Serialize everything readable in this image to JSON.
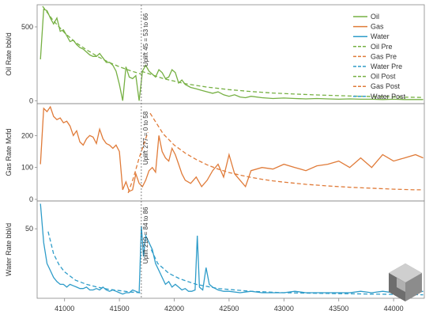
{
  "colors": {
    "oil": "#76b043",
    "gas": "#e07b39",
    "water": "#2e9cc9",
    "frame": "#888888",
    "marker_line": "#666666"
  },
  "chart_data": {
    "type": "line",
    "x_ticks": [
      41000,
      41500,
      42000,
      42500,
      43000,
      43500,
      44000
    ],
    "xlim": [
      40750,
      44280
    ],
    "marker_x": 41700,
    "legend": [
      "Oil",
      "Gas",
      "Water",
      "Oil Pre",
      "Gas Pre",
      "Water Pre",
      "Oil Post",
      "Gas Post",
      "Water Post"
    ],
    "legend_position": "top-right",
    "panels": [
      {
        "name": "oil",
        "ylabel": "Oil Rate bbl/d",
        "ylim": [
          -20,
          650
        ],
        "y_ticks": [
          0,
          500
        ],
        "uplift_label": "Uplift 45 = 53 to 66",
        "actual": {
          "name": "Oil",
          "x": [
            40780,
            40810,
            40840,
            40870,
            40900,
            40930,
            40960,
            40990,
            41020,
            41050,
            41080,
            41110,
            41140,
            41170,
            41200,
            41230,
            41260,
            41290,
            41320,
            41350,
            41380,
            41410,
            41440,
            41470,
            41500,
            41530,
            41560,
            41590,
            41620,
            41650,
            41680,
            41710,
            41740,
            41770,
            41800,
            41830,
            41860,
            41890,
            41920,
            41950,
            41980,
            42010,
            42040,
            42070,
            42100,
            42150,
            42200,
            42250,
            42300,
            42350,
            42400,
            42450,
            42500,
            42550,
            42600,
            42650,
            42700,
            42800,
            42900,
            43000,
            43100,
            43200,
            43300,
            43400,
            43500,
            43600,
            43700,
            43800,
            43900,
            44000,
            44100,
            44200,
            44270
          ],
          "y": [
            280,
            620,
            610,
            560,
            520,
            560,
            470,
            480,
            440,
            400,
            410,
            380,
            360,
            350,
            330,
            310,
            300,
            300,
            320,
            290,
            260,
            260,
            240,
            200,
            110,
            0,
            230,
            160,
            150,
            170,
            0,
            200,
            240,
            200,
            180,
            160,
            210,
            190,
            150,
            160,
            210,
            190,
            120,
            140,
            110,
            90,
            80,
            70,
            60,
            50,
            60,
            40,
            30,
            40,
            25,
            20,
            30,
            20,
            15,
            18,
            15,
            12,
            15,
            12,
            10,
            12,
            10,
            10,
            8,
            10,
            8,
            8,
            8
          ]
        },
        "pre": {
          "name": "Oil Pre",
          "x": [
            40800,
            40900,
            41000,
            41100,
            41200,
            41300,
            41400,
            41500,
            41600,
            41700
          ],
          "y": [
            640,
            540,
            460,
            395,
            345,
            300,
            262,
            230,
            203,
            180
          ]
        },
        "post": {
          "name": "Oil Post",
          "x": [
            41700,
            41900,
            42100,
            42300,
            42500,
            42700,
            42900,
            43100,
            43300,
            43500,
            43700,
            43900,
            44100,
            44270
          ],
          "y": [
            200,
            150,
            115,
            92,
            75,
            62,
            52,
            45,
            39,
            34,
            30,
            27,
            24,
            22
          ]
        }
      },
      {
        "name": "gas",
        "ylabel": "Gas Rate Mcfd",
        "ylim": [
          -5,
          300
        ],
        "y_ticks": [
          0,
          100,
          200
        ],
        "uplift_label": "Uplift 277 = 0 to 58",
        "actual": {
          "name": "Gas",
          "x": [
            40780,
            40810,
            40840,
            40870,
            40900,
            40930,
            40960,
            40990,
            41020,
            41050,
            41080,
            41110,
            41140,
            41170,
            41200,
            41230,
            41260,
            41290,
            41320,
            41350,
            41380,
            41410,
            41440,
            41470,
            41500,
            41530,
            41560,
            41590,
            41620,
            41650,
            41680,
            41710,
            41740,
            41770,
            41800,
            41830,
            41860,
            41890,
            41920,
            41950,
            41980,
            42010,
            42040,
            42070,
            42100,
            42150,
            42200,
            42250,
            42300,
            42350,
            42400,
            42450,
            42500,
            42550,
            42600,
            42650,
            42700,
            42800,
            42900,
            43000,
            43100,
            43200,
            43300,
            43400,
            43500,
            43600,
            43700,
            43800,
            43900,
            44000,
            44100,
            44200,
            44270
          ],
          "y": [
            110,
            285,
            275,
            290,
            260,
            250,
            255,
            240,
            245,
            230,
            200,
            215,
            180,
            170,
            190,
            200,
            195,
            175,
            220,
            190,
            175,
            170,
            160,
            170,
            150,
            30,
            55,
            25,
            30,
            80,
            50,
            40,
            60,
            90,
            100,
            85,
            200,
            150,
            130,
            120,
            160,
            140,
            110,
            80,
            60,
            50,
            70,
            40,
            60,
            90,
            110,
            70,
            140,
            80,
            60,
            40,
            90,
            100,
            95,
            110,
            100,
            90,
            105,
            110,
            120,
            100,
            130,
            100,
            140,
            120,
            130,
            140,
            130
          ]
        },
        "pre": {
          "name": "Gas Pre",
          "x": [
            41580,
            41630,
            41680,
            41730,
            41760
          ],
          "y": [
            20,
            70,
            130,
            180,
            210
          ]
        },
        "post": {
          "name": "Gas Post",
          "x": [
            41780,
            41900,
            42000,
            42100,
            42200,
            42300,
            42400,
            42500,
            42600,
            42700,
            42800,
            42900,
            43000,
            43200,
            43400,
            43600,
            43800,
            44000,
            44200,
            44270
          ],
          "y": [
            270,
            205,
            170,
            145,
            125,
            108,
            95,
            84,
            76,
            69,
            63,
            58,
            54,
            47,
            42,
            38,
            35,
            32,
            30,
            30
          ]
        }
      },
      {
        "name": "water",
        "ylabel": "Water Rate bbl/d",
        "ylim": [
          0,
          70
        ],
        "y_ticks": [
          50
        ],
        "uplift_label": "Uplift 210 = 84 to 86",
        "actual": {
          "name": "Water",
          "x": [
            40780,
            40810,
            40840,
            40870,
            40900,
            40930,
            40960,
            40990,
            41020,
            41050,
            41080,
            41110,
            41140,
            41170,
            41200,
            41230,
            41260,
            41290,
            41320,
            41350,
            41380,
            41410,
            41440,
            41470,
            41500,
            41530,
            41560,
            41590,
            41620,
            41650,
            41680,
            41700,
            41720,
            41740,
            41770,
            41800,
            41830,
            41860,
            41890,
            41920,
            41950,
            41980,
            42010,
            42040,
            42070,
            42100,
            42130,
            42160,
            42190,
            42210,
            42230,
            42260,
            42290,
            42320,
            42350,
            42400,
            42450,
            42500,
            42600,
            42700,
            42800,
            42900,
            43000,
            43100,
            43200,
            43300,
            43400,
            43500,
            43600,
            43700,
            43800,
            43900,
            44000,
            44100,
            44200,
            44270
          ],
          "y": [
            68,
            40,
            25,
            20,
            15,
            12,
            10,
            10,
            8,
            10,
            9,
            8,
            7,
            7,
            8,
            6,
            6,
            7,
            6,
            8,
            6,
            5,
            6,
            5,
            4,
            3,
            4,
            4,
            6,
            5,
            4,
            52,
            30,
            45,
            40,
            35,
            25,
            20,
            15,
            10,
            12,
            8,
            10,
            8,
            6,
            7,
            5,
            5,
            6,
            45,
            8,
            6,
            22,
            10,
            8,
            6,
            5,
            5,
            4,
            5,
            4,
            4,
            4,
            5,
            4,
            4,
            4,
            4,
            4,
            5,
            4,
            5,
            4,
            5,
            4,
            5
          ]
        },
        "pre": {
          "name": "Water Pre",
          "x": [
            40850,
            40900,
            40950,
            41000,
            41050,
            41100,
            41200,
            41300,
            41400,
            41500,
            41600,
            41690
          ],
          "y": [
            48,
            32,
            24,
            19,
            16,
            13,
            10,
            8,
            6.5,
            5.5,
            4.5,
            4
          ]
        },
        "post": {
          "name": "Water Post",
          "x": [
            41790,
            41850,
            41950,
            42050,
            42200,
            42400,
            42700,
            43000,
            43400,
            43800,
            44270
          ],
          "y": [
            35,
            25,
            18,
            14,
            10,
            7,
            5,
            4,
            3.5,
            3,
            2.5
          ]
        }
      }
    ]
  }
}
